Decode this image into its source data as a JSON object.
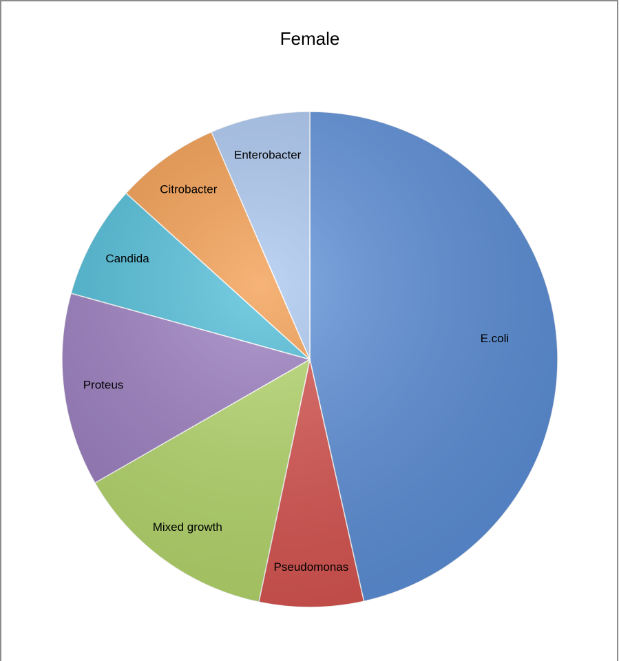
{
  "chart_data": {
    "type": "pie",
    "title": "Female",
    "categories": [
      "E.coli",
      "Pseudomonas",
      "Mixed growth",
      "Proteus",
      "Candida",
      "Citrobacter",
      "Enterobacter"
    ],
    "values": [
      46.5,
      6.8,
      13.4,
      12.6,
      7.4,
      6.8,
      6.5
    ],
    "colors": [
      "#5b8fd9",
      "#d9534f",
      "#b5d86a",
      "#9a7cc0",
      "#4bbcd8",
      "#f39a4a",
      "#a9c6f0"
    ]
  }
}
